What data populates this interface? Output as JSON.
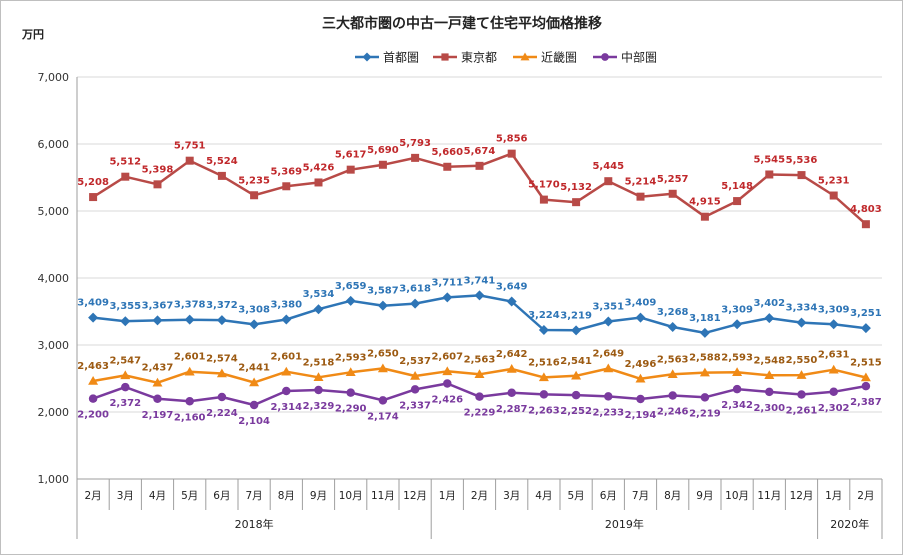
{
  "chart_data": {
    "type": "line",
    "title": "三大都市圏の中古一戸建て住宅平均価格推移",
    "ylabel": "万円",
    "ylim": [
      1000,
      7000
    ],
    "yticks": [
      "1,000",
      "2,000",
      "3,000",
      "4,000",
      "5,000",
      "6,000",
      "7,000"
    ],
    "grid": true,
    "legend_position": "top",
    "categories": [
      "2月",
      "3月",
      "4月",
      "5月",
      "6月",
      "7月",
      "8月",
      "9月",
      "10月",
      "11月",
      "12月",
      "1月",
      "2月",
      "3月",
      "4月",
      "5月",
      "6月",
      "7月",
      "8月",
      "9月",
      "10月",
      "11月",
      "12月",
      "1月",
      "2月"
    ],
    "years": [
      {
        "label": "2018年",
        "start": 0,
        "end": 10
      },
      {
        "label": "2019年",
        "start": 11,
        "end": 22
      },
      {
        "label": "2020年",
        "start": 23,
        "end": 24
      }
    ],
    "series": [
      {
        "name": "首都圏",
        "color": "#2E75B6",
        "marker": "diamond",
        "label_color": "#2E75B6",
        "values": [
          3409,
          3355,
          3367,
          3378,
          3372,
          3308,
          3380,
          3534,
          3659,
          3587,
          3618,
          3711,
          3741,
          3649,
          3224,
          3219,
          3351,
          3409,
          3268,
          3181,
          3309,
          3402,
          3334,
          3309,
          3251
        ],
        "labels": [
          "3,409",
          "3,355",
          "3,367",
          "3,378",
          "3,372",
          "3,308",
          "3,380",
          "3,534",
          "3,659",
          "3,587",
          "3,618",
          "3,711",
          "3,741",
          "3,649",
          "3,224",
          "3,219",
          "3,351",
          "3,409",
          "3,268",
          "3,181",
          "3,309",
          "3,402",
          "3,334",
          "3,309",
          "3,251"
        ]
      },
      {
        "name": "東京都",
        "color": "#B84A47",
        "marker": "square",
        "label_color": "#C0282B",
        "values": [
          5208,
          5512,
          5398,
          5751,
          5524,
          5235,
          5369,
          5426,
          5617,
          5690,
          5793,
          5660,
          5674,
          5856,
          5170,
          5132,
          5445,
          5214,
          5257,
          4915,
          5148,
          5545,
          5536,
          5231,
          4803
        ],
        "labels": [
          "5,208",
          "5,512",
          "5,398",
          "5,751",
          "5,524",
          "5,235",
          "5,369",
          "5,426",
          "5,617",
          "5,690",
          "5,793",
          "5,660",
          "5,674",
          "5,856",
          "5,170",
          "5,132",
          "5,445",
          "5,214",
          "5,257",
          "4,915",
          "5,148",
          "5,545",
          "5,536",
          "5,231",
          "4,803"
        ]
      },
      {
        "name": "近畿圏",
        "color": "#F08A16",
        "marker": "triangle",
        "label_color": "#9C5A12",
        "values": [
          2463,
          2547,
          2437,
          2601,
          2574,
          2441,
          2601,
          2518,
          2593,
          2650,
          2537,
          2607,
          2563,
          2642,
          2516,
          2541,
          2649,
          2496,
          2563,
          2588,
          2593,
          2548,
          2550,
          2631,
          2515
        ],
        "labels": [
          "2,463",
          "2,547",
          "2,437",
          "2,601",
          "2,574",
          "2,441",
          "2,601",
          "2,518",
          "2,593",
          "2,650",
          "2,537",
          "2,607",
          "2,563",
          "2,642",
          "2,516",
          "2,541",
          "2,649",
          "2,496",
          "2,563",
          "2,588",
          "2,593",
          "2,548",
          "2,550",
          "2,631",
          "2,515"
        ]
      },
      {
        "name": "中部圏",
        "color": "#7A3A9E",
        "marker": "circle",
        "label_color": "#7A3A9E",
        "values": [
          2200,
          2372,
          2197,
          2160,
          2224,
          2104,
          2314,
          2329,
          2290,
          2174,
          2337,
          2426,
          2229,
          2287,
          2263,
          2252,
          2233,
          2194,
          2246,
          2219,
          2342,
          2300,
          2261,
          2302,
          2387
        ],
        "labels": [
          "2,200",
          "2,372",
          "2,197",
          "2,160",
          "2,224",
          "2,104",
          "2,314",
          "2,329",
          "2,290",
          "2,174",
          "2,337",
          "2,426",
          "2,229",
          "2,287",
          "2,263",
          "2,252",
          "2,233",
          "2,194",
          "2,246",
          "2,219",
          "2,342",
          "2,300",
          "2,261",
          "2,302",
          "2,387"
        ]
      }
    ]
  }
}
